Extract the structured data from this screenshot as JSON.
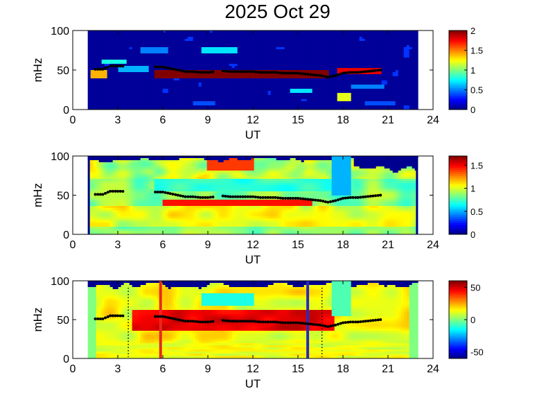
{
  "title": "2025 Oct 29",
  "colors": {
    "background": "#ffffff",
    "axis": "#000000",
    "data_gap": "#00008f",
    "ridge_dots": "#000000",
    "event_line_1": "#e8281e",
    "event_line_2": "#2b2bb4",
    "colormap": "jet"
  },
  "chart_data": [
    {
      "type": "heatmap",
      "panel": 1,
      "xlabel": "UT",
      "ylabel": "mHz",
      "xlim": [
        0,
        24
      ],
      "ylim": [
        0,
        100
      ],
      "xticks": [
        "0",
        "3",
        "6",
        "9",
        "12",
        "15",
        "18",
        "21",
        "24"
      ],
      "yticks": [
        "0",
        "50",
        "100"
      ],
      "colorbar": {
        "ticks": [
          "0",
          "0.5",
          "1",
          "1.5",
          "2"
        ],
        "range": [
          0,
          2
        ]
      },
      "data_coverage_ut": [
        1.0,
        23.0
      ],
      "ridge": {
        "ut": [
          1.5,
          2.0,
          2.5,
          3.0,
          5.5,
          6.0,
          6.5,
          7.0,
          7.5,
          8.0,
          8.5,
          9.0,
          10.0,
          10.5,
          11.0,
          11.5,
          12.0,
          12.5,
          13.0,
          13.5,
          14.0,
          14.5,
          15.0,
          15.5,
          16.0,
          16.5,
          17.0,
          17.5,
          18.0,
          18.5,
          19.0,
          19.5,
          20.0,
          20.5
        ],
        "mhz": [
          51,
          51,
          55,
          55,
          54,
          54,
          52,
          50,
          48,
          48,
          47,
          47,
          49,
          48,
          48,
          48,
          48,
          47,
          47,
          47,
          46,
          46,
          46,
          45,
          44,
          43,
          41,
          43,
          46,
          47,
          47,
          48,
          49,
          50
        ]
      }
    },
    {
      "type": "heatmap",
      "panel": 2,
      "xlabel": "UT",
      "ylabel": "mHz",
      "xlim": [
        0,
        24
      ],
      "ylim": [
        0,
        100
      ],
      "xticks": [
        "0",
        "3",
        "6",
        "9",
        "12",
        "15",
        "18",
        "21",
        "24"
      ],
      "yticks": [
        "0",
        "50",
        "100"
      ],
      "colorbar": {
        "ticks": [
          "0",
          "0.5",
          "1",
          "1.5"
        ],
        "range": [
          0,
          1.7
        ]
      },
      "data_coverage_ut": [
        1.0,
        23.0
      ],
      "ridge": {
        "ut": [
          1.5,
          2.0,
          2.5,
          3.0,
          5.5,
          6.0,
          6.5,
          7.0,
          7.5,
          8.0,
          8.5,
          9.0,
          10.0,
          10.5,
          11.0,
          11.5,
          12.0,
          12.5,
          13.0,
          13.5,
          14.0,
          14.5,
          15.0,
          15.5,
          16.0,
          16.5,
          17.0,
          17.5,
          18.0,
          18.5,
          19.0,
          19.5,
          20.0,
          20.5
        ],
        "mhz": [
          51,
          51,
          55,
          55,
          54,
          54,
          52,
          50,
          48,
          48,
          47,
          47,
          49,
          48,
          48,
          48,
          48,
          47,
          47,
          47,
          46,
          46,
          46,
          45,
          44,
          43,
          41,
          43,
          46,
          47,
          47,
          48,
          49,
          50
        ]
      }
    },
    {
      "type": "heatmap",
      "panel": 3,
      "xlabel": "UT",
      "ylabel": "mHz",
      "xlim": [
        0,
        24
      ],
      "ylim": [
        0,
        100
      ],
      "xticks": [
        "0",
        "3",
        "6",
        "9",
        "12",
        "15",
        "18",
        "21",
        "24"
      ],
      "yticks": [
        "0",
        "50",
        "100"
      ],
      "colorbar": {
        "ticks": [
          "-50",
          "0",
          "50"
        ],
        "range": [
          -60,
          60
        ]
      },
      "data_coverage_ut": [
        1.0,
        23.0
      ],
      "ridge": {
        "ut": [
          1.5,
          2.0,
          2.5,
          3.0,
          5.5,
          6.0,
          6.5,
          7.0,
          7.5,
          8.0,
          8.5,
          9.0,
          10.0,
          10.5,
          11.0,
          11.5,
          12.0,
          12.5,
          13.0,
          13.5,
          14.0,
          14.5,
          15.0,
          15.5,
          16.0,
          16.5,
          17.0,
          17.5,
          18.0,
          18.5,
          19.0,
          19.5,
          20.0,
          20.5
        ],
        "mhz": [
          51,
          51,
          55,
          55,
          54,
          54,
          52,
          50,
          48,
          48,
          47,
          47,
          49,
          48,
          48,
          48,
          48,
          47,
          47,
          47,
          46,
          46,
          46,
          45,
          44,
          43,
          41,
          43,
          46,
          47,
          47,
          48,
          49,
          50
        ]
      },
      "vertical_lines": [
        {
          "ut": 5.85,
          "style": "solid",
          "color": "#e8281e"
        },
        {
          "ut": 15.65,
          "style": "solid",
          "color": "#2b2bb4"
        },
        {
          "ut": 3.7,
          "style": "dotted",
          "color": "#000000"
        },
        {
          "ut": 16.6,
          "style": "dotted",
          "color": "#000000"
        }
      ]
    }
  ]
}
